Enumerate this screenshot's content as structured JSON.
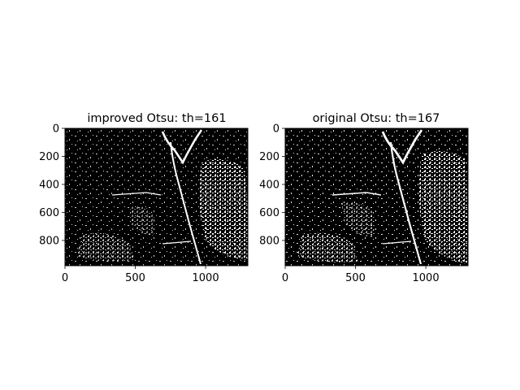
{
  "figure": {
    "background": "#ffffff"
  },
  "chart_data": [
    {
      "type": "image",
      "title": "improved Otsu: th=161",
      "threshold": 161,
      "image_size": [
        1300,
        980
      ],
      "xlim": [
        0,
        1300
      ],
      "ylim": [
        980,
        0
      ],
      "xticks": [
        0,
        500,
        1000
      ],
      "xtick_labels": [
        "0",
        "500",
        "1000"
      ],
      "yticks": [
        0,
        200,
        400,
        600,
        800
      ],
      "ytick_labels": [
        "0",
        "200",
        "400",
        "600",
        "800"
      ],
      "colormap": [
        "#000000",
        "#ffffff"
      ],
      "content": "binary thresholded aerial image; white pixels above threshold on black background"
    },
    {
      "type": "image",
      "title": "original Otsu: th=167",
      "threshold": 167,
      "image_size": [
        1300,
        980
      ],
      "xlim": [
        0,
        1300
      ],
      "ylim": [
        980,
        0
      ],
      "xticks": [
        0,
        500,
        1000
      ],
      "xtick_labels": [
        "0",
        "500",
        "1000"
      ],
      "yticks": [
        0,
        200,
        400,
        600,
        800
      ],
      "ytick_labels": [
        "0",
        "200",
        "400",
        "600",
        "800"
      ],
      "colormap": [
        "#000000",
        "#ffffff"
      ],
      "content": "binary thresholded aerial image; white pixels above threshold on black background"
    }
  ]
}
